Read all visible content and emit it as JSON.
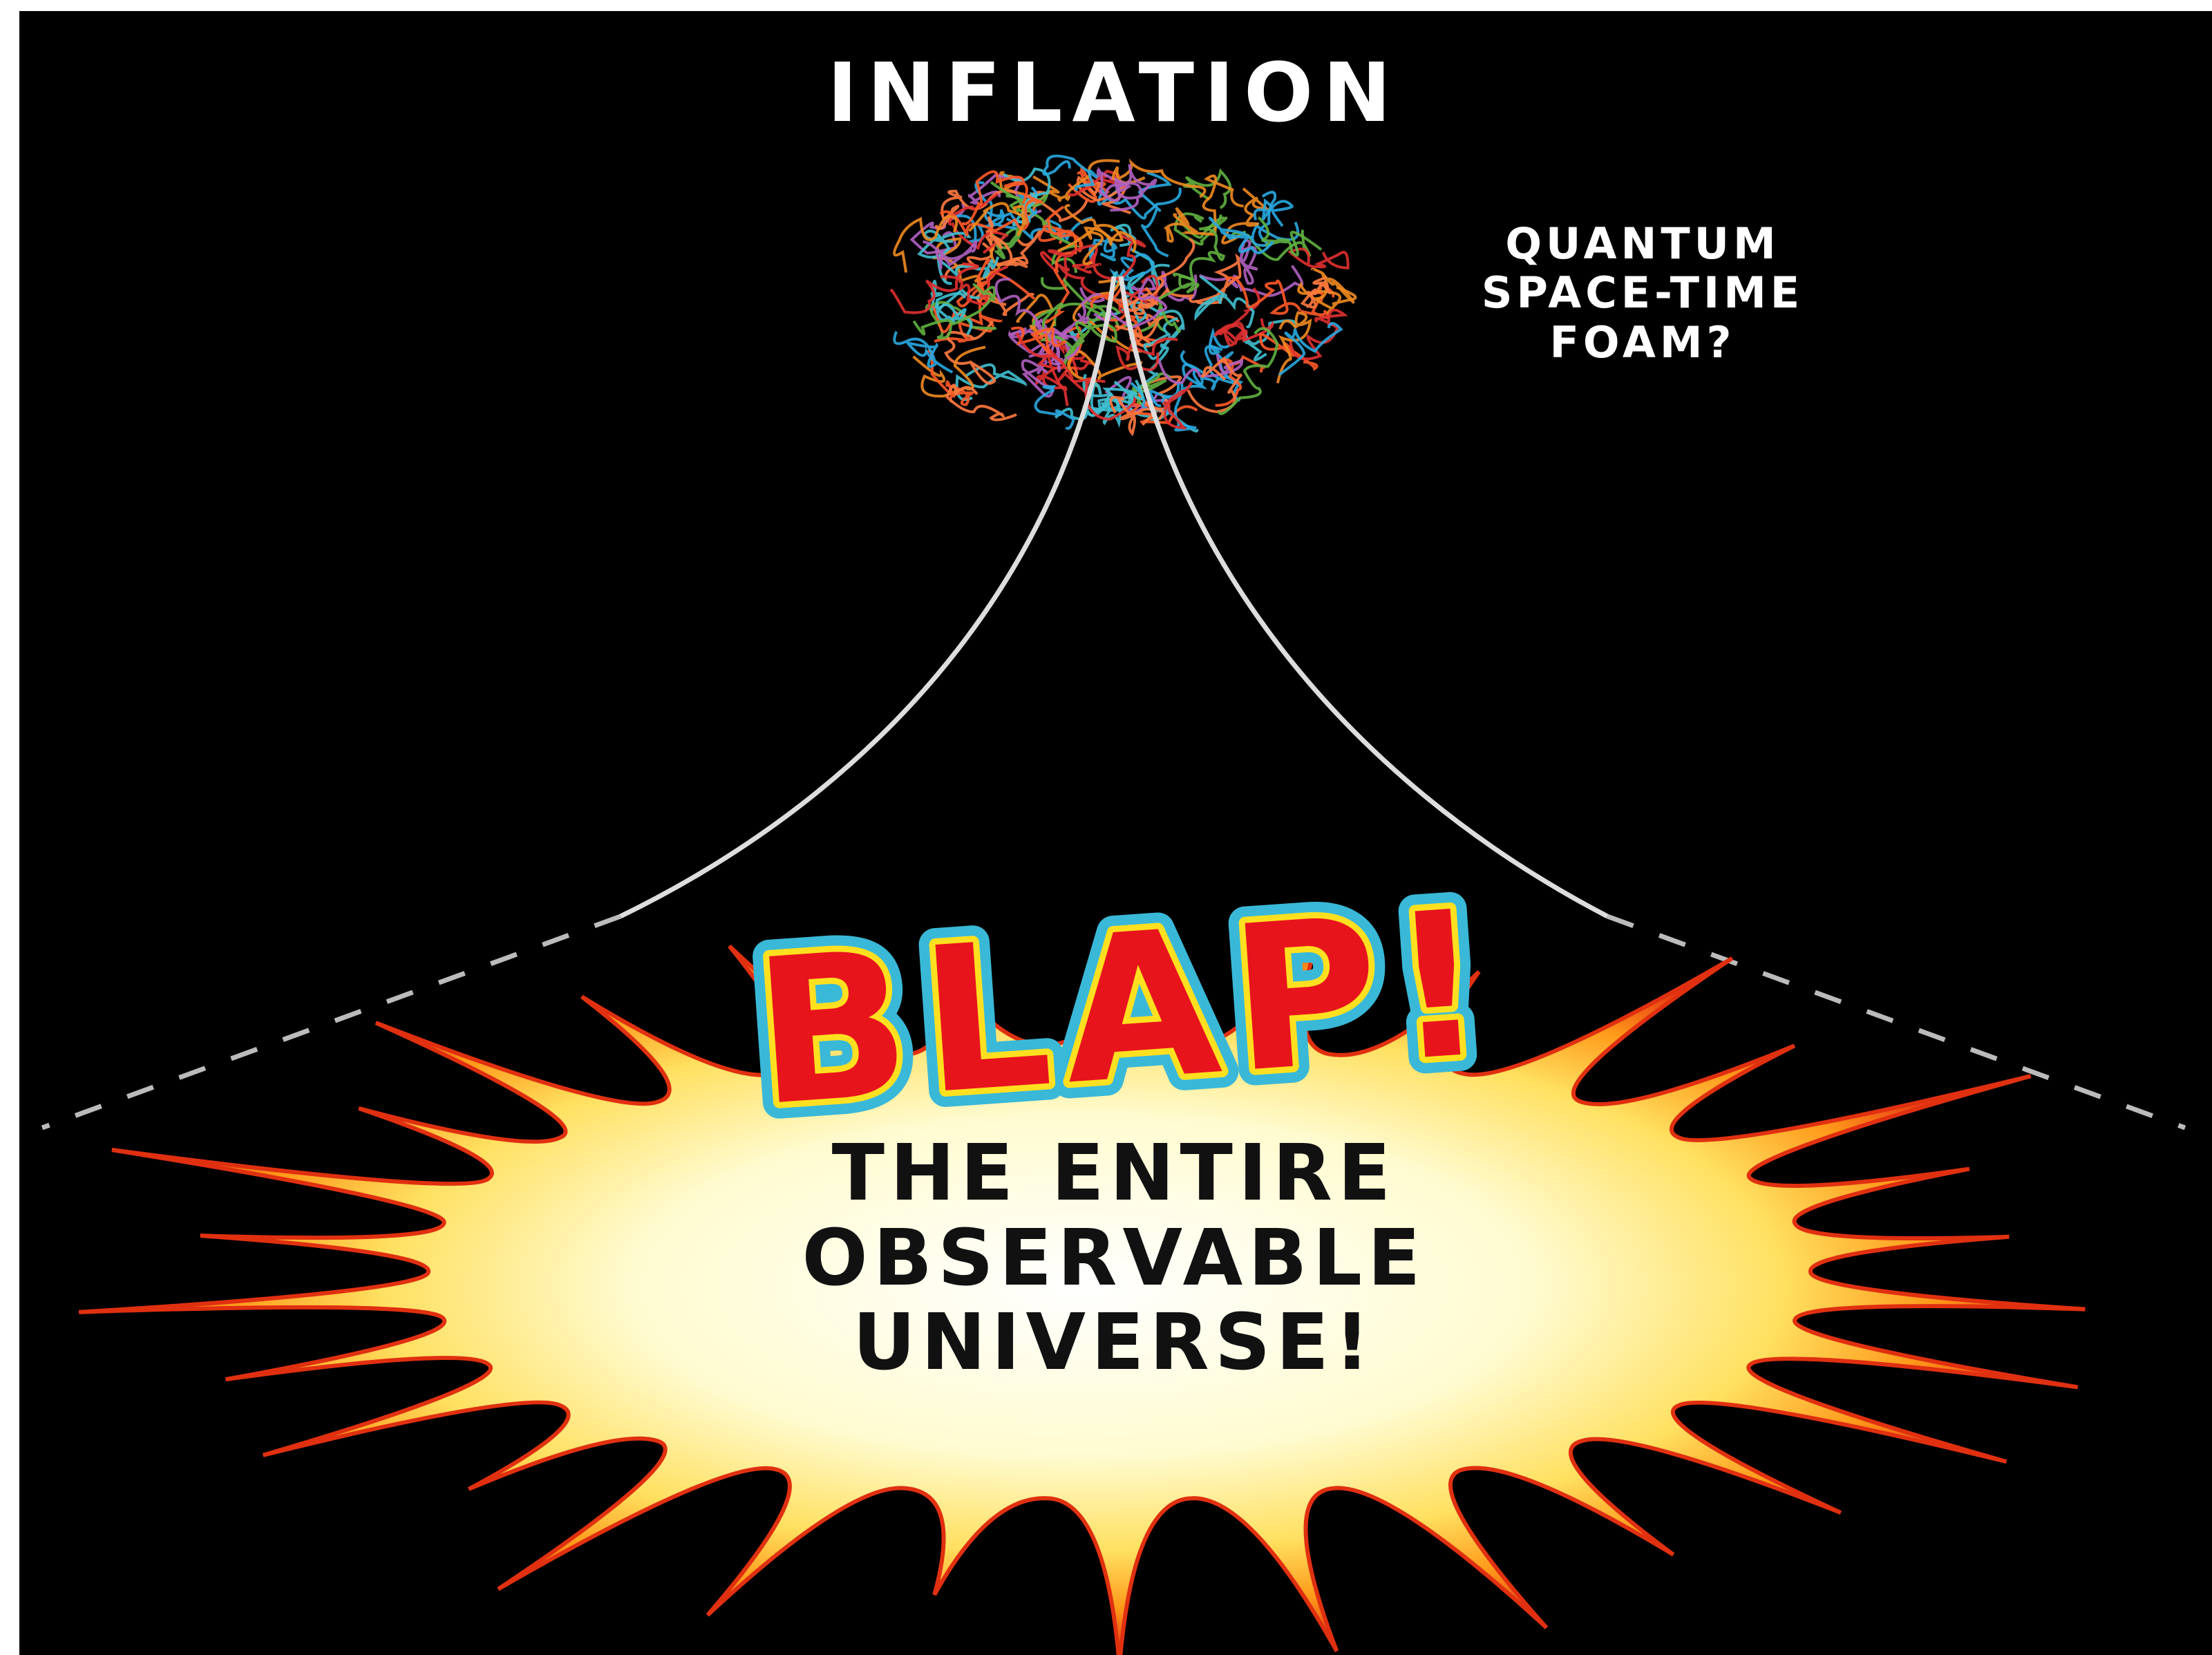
{
  "title": "INFLATION",
  "foam_label": [
    "QUANTUM",
    "SPACE-TIME",
    "FOAM?"
  ],
  "burst": {
    "exclamation": "BLAP!",
    "caption": [
      "THE ENTIRE",
      "OBSERVABLE",
      "UNIVERSE!"
    ]
  }
}
